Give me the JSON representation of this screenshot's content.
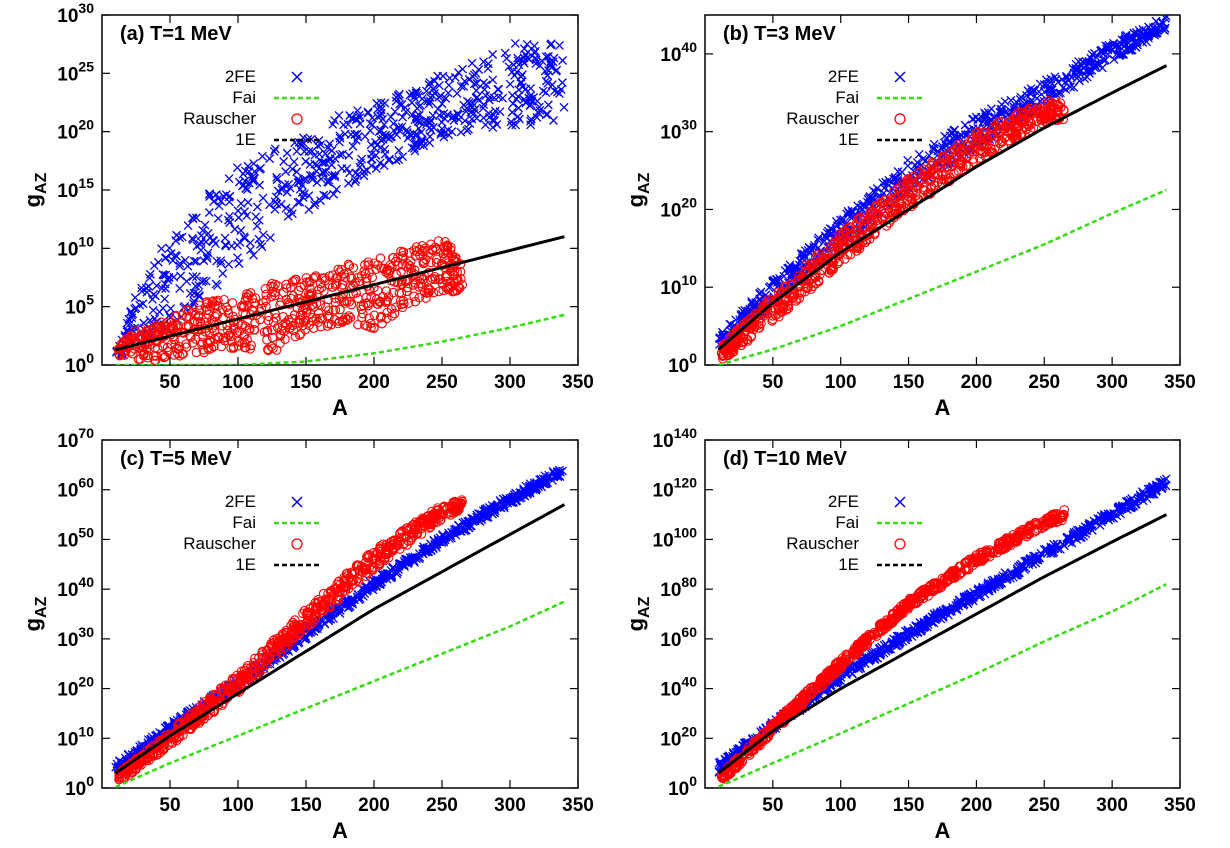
{
  "chart_data": [
    {
      "type": "scatter",
      "title": "(a) T=1 MeV",
      "xlabel": "A",
      "ylabel": "g",
      "ylabel_sub": "AZ",
      "xlim": [
        0,
        350
      ],
      "ylim": [
        0,
        30
      ],
      "yscale": "log",
      "xticks": [
        "50",
        "100",
        "150",
        "200",
        "250",
        "300",
        "350"
      ],
      "ytick_exponents": [
        "0",
        "5",
        "10",
        "15",
        "20",
        "25",
        "30"
      ],
      "legend": [
        "2FE",
        "Fai",
        "Rauscher",
        "1E"
      ],
      "series": [
        {
          "name": "2FE",
          "kind": "scatter",
          "marker": "cross",
          "color": "#0000ff",
          "x": [
            10,
            25,
            50,
            75,
            100,
            125,
            150,
            175,
            200,
            225,
            250,
            275,
            300,
            325,
            340
          ],
          "y_log10": [
            1.0,
            3.5,
            8.0,
            11.5,
            14.5,
            16.5,
            18.5,
            19.5,
            20.5,
            21.5,
            23.0,
            23.5,
            24.5,
            25.0,
            25.5
          ],
          "y_log10_min": [
            0.5,
            1.5,
            3.0,
            6.0,
            8.0,
            11.0,
            13.0,
            15.0,
            16.5,
            18.0,
            19.5,
            20.0,
            20.5,
            20.5,
            21.0
          ],
          "y_log10_max": [
            1.5,
            6.0,
            11.5,
            14.5,
            17.0,
            18.5,
            20.0,
            21.5,
            22.5,
            23.5,
            25.0,
            26.0,
            27.5,
            28.0,
            27.5
          ]
        },
        {
          "name": "Fai",
          "kind": "line",
          "color": "#33dd11",
          "x": [
            10,
            50,
            100,
            150,
            200,
            250,
            300,
            340
          ],
          "y_log10": [
            0.0,
            0.0,
            0.0,
            0.3,
            1.0,
            2.0,
            3.2,
            4.3
          ]
        },
        {
          "name": "Rauscher",
          "kind": "scatter",
          "marker": "circle",
          "color": "#ff0000",
          "x": [
            12,
            25,
            50,
            75,
            100,
            125,
            150,
            175,
            200,
            225,
            250,
            265
          ],
          "y_log10": [
            1.5,
            2.0,
            3.0,
            3.8,
            4.5,
            5.0,
            5.5,
            6.0,
            6.5,
            7.5,
            8.5,
            7.0
          ],
          "y_log10_min": [
            0.8,
            0.5,
            0.3,
            0.8,
            1.5,
            0.5,
            3.0,
            3.5,
            3.0,
            5.0,
            6.0,
            6.5
          ],
          "y_log10_max": [
            2.0,
            3.0,
            4.0,
            5.5,
            6.0,
            7.0,
            7.5,
            8.5,
            9.0,
            10.0,
            11.0,
            9.0
          ]
        },
        {
          "name": "1E",
          "kind": "line",
          "color": "#000000",
          "x": [
            10,
            340
          ],
          "y_log10": [
            1.3,
            11.0
          ]
        }
      ]
    },
    {
      "type": "scatter",
      "title": "(b) T=3 MeV",
      "xlabel": "A",
      "ylabel": "g",
      "ylabel_sub": "AZ",
      "xlim": [
        0,
        350
      ],
      "ylim": [
        0,
        45
      ],
      "yscale": "log",
      "xticks": [
        "50",
        "100",
        "150",
        "200",
        "250",
        "300",
        "350"
      ],
      "ytick_exponents": [
        "0",
        "10",
        "20",
        "30",
        "40"
      ],
      "legend": [
        "2FE",
        "Fai",
        "Rauscher",
        "1E"
      ],
      "series": [
        {
          "name": "2FE",
          "kind": "scatter",
          "marker": "cross",
          "color": "#0000ff",
          "x": [
            10,
            50,
            100,
            150,
            200,
            250,
            300,
            340
          ],
          "y_log10": [
            3.0,
            9.5,
            17.0,
            24.0,
            29.5,
            34.5,
            40.0,
            44.0
          ],
          "y_log10_min": [
            2.0,
            7.5,
            15.0,
            22.0,
            28.0,
            33.0,
            39.0,
            43.0
          ],
          "y_log10_max": [
            4.0,
            11.0,
            19.0,
            26.5,
            32.0,
            36.5,
            41.5,
            45.0
          ]
        },
        {
          "name": "Fai",
          "kind": "line",
          "color": "#33dd11",
          "x": [
            10,
            50,
            100,
            150,
            200,
            250,
            300,
            340
          ],
          "y_log10": [
            0.0,
            2.0,
            5.0,
            8.5,
            12.0,
            15.5,
            19.5,
            22.5
          ]
        },
        {
          "name": "Rauscher",
          "kind": "scatter",
          "marker": "circle",
          "color": "#ff0000",
          "x": [
            12,
            50,
            100,
            150,
            200,
            250,
            265
          ],
          "y_log10": [
            1.5,
            7.5,
            15.0,
            22.0,
            28.0,
            32.5,
            33.0
          ],
          "y_log10_min": [
            0.5,
            5.5,
            13.0,
            20.0,
            26.0,
            31.0,
            31.5
          ],
          "y_log10_max": [
            2.5,
            9.0,
            17.0,
            24.0,
            30.0,
            34.0,
            34.0
          ]
        },
        {
          "name": "1E",
          "kind": "line",
          "color": "#000000",
          "x": [
            10,
            50,
            100,
            150,
            200,
            250,
            300,
            340
          ],
          "y_log10": [
            2.0,
            8.0,
            14.5,
            20.0,
            25.5,
            30.5,
            35.0,
            38.5
          ]
        }
      ]
    },
    {
      "type": "scatter",
      "title": "(c) T=5 MeV",
      "xlabel": "A",
      "ylabel": "g",
      "ylabel_sub": "AZ",
      "xlim": [
        0,
        350
      ],
      "ylim": [
        0,
        70
      ],
      "yscale": "log",
      "xticks": [
        "50",
        "100",
        "150",
        "200",
        "250",
        "300",
        "350"
      ],
      "ytick_exponents": [
        "0",
        "10",
        "20",
        "30",
        "40",
        "50",
        "60",
        "70"
      ],
      "legend": [
        "2FE",
        "Fai",
        "Rauscher",
        "1E"
      ],
      "series": [
        {
          "name": "2FE",
          "kind": "scatter",
          "marker": "cross",
          "color": "#0000ff",
          "x": [
            10,
            50,
            100,
            150,
            200,
            250,
            300,
            340
          ],
          "y_log10": [
            4.0,
            12.0,
            21.0,
            31.0,
            41.0,
            50.0,
            58.0,
            64.0
          ],
          "y_log10_min": [
            3.0,
            11.0,
            20.0,
            30.0,
            40.0,
            49.0,
            57.0,
            63.0
          ],
          "y_log10_max": [
            5.0,
            13.0,
            22.0,
            32.5,
            42.0,
            51.0,
            59.0,
            65.0
          ]
        },
        {
          "name": "Fai",
          "kind": "line",
          "color": "#33dd11",
          "x": [
            10,
            50,
            100,
            150,
            200,
            250,
            300,
            340
          ],
          "y_log10": [
            0.2,
            5.0,
            10.5,
            16.0,
            21.5,
            27.0,
            32.5,
            37.5
          ]
        },
        {
          "name": "Rauscher",
          "kind": "scatter",
          "marker": "circle",
          "color": "#ff0000",
          "x": [
            12,
            50,
            100,
            150,
            200,
            250,
            265
          ],
          "y_log10": [
            2.0,
            10.0,
            21.0,
            34.0,
            46.0,
            55.0,
            57.0
          ],
          "y_log10_min": [
            1.0,
            8.5,
            19.0,
            32.0,
            44.0,
            54.0,
            56.0
          ],
          "y_log10_max": [
            3.0,
            11.5,
            23.0,
            36.0,
            48.0,
            57.0,
            58.0
          ]
        },
        {
          "name": "1E",
          "kind": "line",
          "color": "#000000",
          "x": [
            10,
            50,
            100,
            150,
            200,
            250,
            300,
            340
          ],
          "y_log10": [
            3.0,
            10.5,
            19.0,
            27.5,
            36.0,
            43.5,
            51.0,
            57.0
          ]
        }
      ]
    },
    {
      "type": "scatter",
      "title": "(d) T=10 MeV",
      "xlabel": "A",
      "ylabel": "g",
      "ylabel_sub": "AZ",
      "xlim": [
        0,
        350
      ],
      "ylim": [
        0,
        140
      ],
      "yscale": "log",
      "xticks": [
        "50",
        "100",
        "150",
        "200",
        "250",
        "300",
        "350"
      ],
      "ytick_exponents": [
        "0",
        "20",
        "40",
        "60",
        "80",
        "100",
        "120",
        "140"
      ],
      "legend": [
        "2FE",
        "Fai",
        "Rauscher",
        "1E"
      ],
      "series": [
        {
          "name": "2FE",
          "kind": "scatter",
          "marker": "cross",
          "color": "#0000ff",
          "x": [
            10,
            50,
            100,
            150,
            200,
            250,
            300,
            340
          ],
          "y_log10": [
            8.0,
            25.0,
            45.0,
            62.0,
            78.0,
            94.0,
            110.0,
            123.0
          ],
          "y_log10_min": [
            6.0,
            23.0,
            43.0,
            60.0,
            76.0,
            92.0,
            108.0,
            121.0
          ],
          "y_log10_max": [
            10.0,
            27.0,
            47.0,
            64.0,
            80.0,
            96.0,
            112.0,
            125.0
          ]
        },
        {
          "name": "Fai",
          "kind": "line",
          "color": "#33dd11",
          "x": [
            10,
            50,
            100,
            150,
            200,
            250,
            300,
            340
          ],
          "y_log10": [
            0.5,
            10.0,
            22.0,
            34.0,
            46.0,
            59.0,
            71.0,
            82.0
          ]
        },
        {
          "name": "Rauscher",
          "kind": "scatter",
          "marker": "circle",
          "color": "#ff0000",
          "x": [
            12,
            50,
            100,
            150,
            200,
            250,
            265
          ],
          "y_log10": [
            4.0,
            24.0,
            50.0,
            74.0,
            92.0,
            107.0,
            110.0
          ],
          "y_log10_min": [
            2.0,
            22.0,
            48.0,
            72.0,
            90.0,
            105.0,
            108.0
          ],
          "y_log10_max": [
            6.0,
            26.0,
            52.0,
            76.0,
            94.0,
            109.0,
            112.0
          ]
        },
        {
          "name": "1E",
          "kind": "line",
          "color": "#000000",
          "x": [
            10,
            50,
            100,
            150,
            200,
            250,
            300,
            340
          ],
          "y_log10": [
            6.0,
            23.0,
            40.0,
            55.0,
            70.0,
            85.0,
            99.0,
            110.0
          ]
        }
      ]
    }
  ]
}
